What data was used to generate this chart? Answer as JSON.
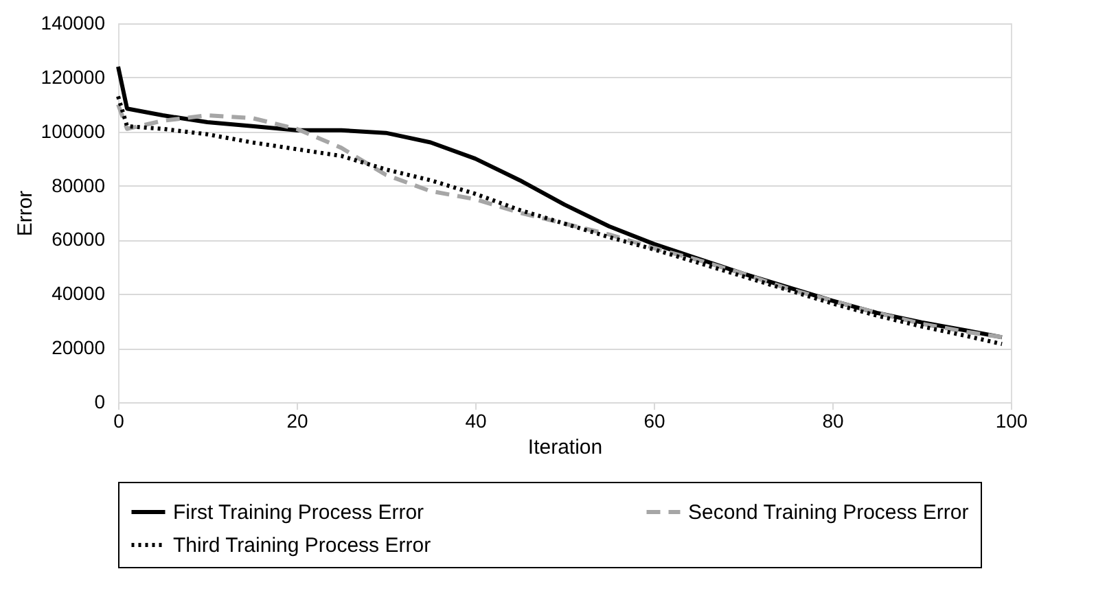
{
  "chart_data": {
    "type": "line",
    "xlabel": "Iteration",
    "ylabel": "Error",
    "xlim": [
      0,
      100
    ],
    "xticks": [
      0,
      20,
      40,
      60,
      80,
      100
    ],
    "ylim": [
      0,
      140000
    ],
    "yticks": [
      0,
      20000,
      40000,
      60000,
      80000,
      100000,
      120000,
      140000
    ],
    "grid": "y",
    "legend": "bottom",
    "series": [
      {
        "name": "First Training Process Error",
        "color": "#000000",
        "line_style": "solid",
        "x": [
          0,
          1,
          5,
          10,
          15,
          20,
          25,
          30,
          35,
          40,
          45,
          50,
          55,
          60,
          65,
          70,
          75,
          80,
          85,
          90,
          95,
          99
        ],
        "values": [
          124000,
          108500,
          106000,
          103500,
          102000,
          100500,
          100500,
          99500,
          96000,
          90000,
          82000,
          73000,
          65000,
          58500,
          53000,
          47500,
          42500,
          37500,
          33000,
          29500,
          26500,
          24000
        ]
      },
      {
        "name": "Second Training Process Error",
        "color": "#a6a6a6",
        "line_style": "dashed",
        "x": [
          0,
          1,
          5,
          10,
          15,
          20,
          25,
          30,
          35,
          40,
          45,
          50,
          55,
          60,
          65,
          70,
          75,
          80,
          85,
          90,
          95,
          99
        ],
        "values": [
          110000,
          101000,
          104000,
          106000,
          105000,
          101000,
          94000,
          84000,
          78000,
          75000,
          70000,
          66000,
          62000,
          57000,
          52500,
          47500,
          42000,
          37500,
          33000,
          29000,
          26000,
          24000
        ]
      },
      {
        "name": "Third Training Process Error",
        "color": "#000000",
        "line_style": "dotted",
        "x": [
          0,
          1,
          5,
          10,
          15,
          20,
          25,
          30,
          35,
          40,
          45,
          50,
          55,
          60,
          65,
          70,
          75,
          80,
          85,
          90,
          95,
          99
        ],
        "values": [
          113000,
          102000,
          101000,
          99000,
          96000,
          93500,
          91000,
          86000,
          82000,
          77000,
          71000,
          66000,
          61000,
          56500,
          51500,
          46500,
          41500,
          36500,
          32000,
          28000,
          24500,
          21500
        ]
      }
    ]
  }
}
